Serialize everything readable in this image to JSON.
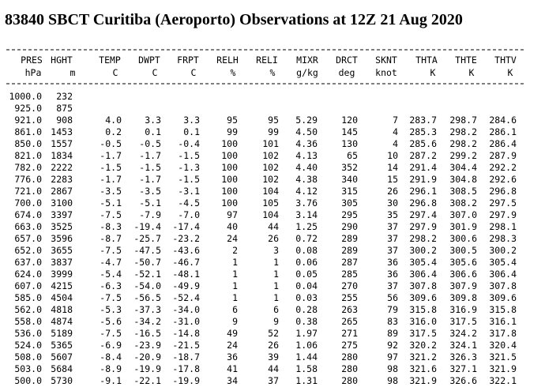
{
  "title": "83840 SBCT Curitiba (Aeroporto) Observations at 12Z 21 Aug 2020",
  "table": {
    "columns": [
      {
        "name": "PRES",
        "unit": "hPa"
      },
      {
        "name": "HGHT",
        "unit": "m"
      },
      {
        "name": "TEMP",
        "unit": "C"
      },
      {
        "name": "DWPT",
        "unit": "C"
      },
      {
        "name": "FRPT",
        "unit": "C"
      },
      {
        "name": "RELH",
        "unit": "%"
      },
      {
        "name": "RELI",
        "unit": "%"
      },
      {
        "name": "MIXR",
        "unit": "g/kg"
      },
      {
        "name": "DRCT",
        "unit": "deg"
      },
      {
        "name": "SKNT",
        "unit": "knot"
      },
      {
        "name": "THTA",
        "unit": "K"
      },
      {
        "name": "THTE",
        "unit": "K"
      },
      {
        "name": "THTV",
        "unit": "K"
      }
    ],
    "rows": [
      [
        "1000.0",
        "232"
      ],
      [
        "925.0",
        "875"
      ],
      [
        "921.0",
        "908",
        "4.0",
        "3.3",
        "3.3",
        "95",
        "95",
        "5.29",
        "120",
        "7",
        "283.7",
        "298.7",
        "284.6"
      ],
      [
        "861.0",
        "1453",
        "0.2",
        "0.1",
        "0.1",
        "99",
        "99",
        "4.50",
        "145",
        "4",
        "285.3",
        "298.2",
        "286.1"
      ],
      [
        "850.0",
        "1557",
        "-0.5",
        "-0.5",
        "-0.4",
        "100",
        "101",
        "4.36",
        "130",
        "4",
        "285.6",
        "298.2",
        "286.4"
      ],
      [
        "821.0",
        "1834",
        "-1.7",
        "-1.7",
        "-1.5",
        "100",
        "102",
        "4.13",
        "65",
        "10",
        "287.2",
        "299.2",
        "287.9"
      ],
      [
        "782.0",
        "2222",
        "-1.5",
        "-1.5",
        "-1.3",
        "100",
        "102",
        "4.40",
        "352",
        "14",
        "291.4",
        "304.4",
        "292.2"
      ],
      [
        "776.0",
        "2283",
        "-1.7",
        "-1.7",
        "-1.5",
        "100",
        "102",
        "4.38",
        "340",
        "15",
        "291.9",
        "304.8",
        "292.6"
      ],
      [
        "721.0",
        "2867",
        "-3.5",
        "-3.5",
        "-3.1",
        "100",
        "104",
        "4.12",
        "315",
        "26",
        "296.1",
        "308.5",
        "296.8"
      ],
      [
        "700.0",
        "3100",
        "-5.1",
        "-5.1",
        "-4.5",
        "100",
        "105",
        "3.76",
        "305",
        "30",
        "296.8",
        "308.2",
        "297.5"
      ],
      [
        "674.0",
        "3397",
        "-7.5",
        "-7.9",
        "-7.0",
        "97",
        "104",
        "3.14",
        "295",
        "35",
        "297.4",
        "307.0",
        "297.9"
      ],
      [
        "663.0",
        "3525",
        "-8.3",
        "-19.4",
        "-17.4",
        "40",
        "44",
        "1.25",
        "290",
        "37",
        "297.9",
        "301.9",
        "298.1"
      ],
      [
        "657.0",
        "3596",
        "-8.7",
        "-25.7",
        "-23.2",
        "24",
        "26",
        "0.72",
        "289",
        "37",
        "298.2",
        "300.6",
        "298.3"
      ],
      [
        "652.0",
        "3655",
        "-7.5",
        "-47.5",
        "-43.6",
        "2",
        "3",
        "0.08",
        "289",
        "37",
        "300.2",
        "300.5",
        "300.2"
      ],
      [
        "637.0",
        "3837",
        "-4.7",
        "-50.7",
        "-46.7",
        "1",
        "1",
        "0.06",
        "287",
        "36",
        "305.4",
        "305.6",
        "305.4"
      ],
      [
        "624.0",
        "3999",
        "-5.4",
        "-52.1",
        "-48.1",
        "1",
        "1",
        "0.05",
        "285",
        "36",
        "306.4",
        "306.6",
        "306.4"
      ],
      [
        "607.0",
        "4215",
        "-6.3",
        "-54.0",
        "-49.9",
        "1",
        "1",
        "0.04",
        "270",
        "37",
        "307.8",
        "307.9",
        "307.8"
      ],
      [
        "585.0",
        "4504",
        "-7.5",
        "-56.5",
        "-52.4",
        "1",
        "1",
        "0.03",
        "255",
        "56",
        "309.6",
        "309.8",
        "309.6"
      ],
      [
        "562.0",
        "4818",
        "-5.3",
        "-37.3",
        "-34.0",
        "6",
        "6",
        "0.28",
        "263",
        "79",
        "315.8",
        "316.9",
        "315.8"
      ],
      [
        "558.0",
        "4874",
        "-5.6",
        "-34.2",
        "-31.0",
        "9",
        "9",
        "0.38",
        "265",
        "83",
        "316.0",
        "317.5",
        "316.1"
      ],
      [
        "536.0",
        "5189",
        "-7.5",
        "-16.5",
        "-14.8",
        "49",
        "52",
        "1.97",
        "271",
        "89",
        "317.5",
        "324.2",
        "317.8"
      ],
      [
        "524.0",
        "5365",
        "-6.9",
        "-23.9",
        "-21.5",
        "24",
        "26",
        "1.06",
        "275",
        "92",
        "320.2",
        "324.1",
        "320.4"
      ],
      [
        "508.0",
        "5607",
        "-8.4",
        "-20.9",
        "-18.7",
        "36",
        "39",
        "1.44",
        "280",
        "97",
        "321.2",
        "326.3",
        "321.5"
      ],
      [
        "503.0",
        "5684",
        "-8.9",
        "-19.9",
        "-17.8",
        "41",
        "44",
        "1.58",
        "280",
        "98",
        "321.6",
        "327.1",
        "321.9"
      ],
      [
        "500.0",
        "5730",
        "-9.1",
        "-22.1",
        "-19.9",
        "34",
        "37",
        "1.31",
        "280",
        "98",
        "321.9",
        "326.6",
        "322.1"
      ]
    ]
  }
}
